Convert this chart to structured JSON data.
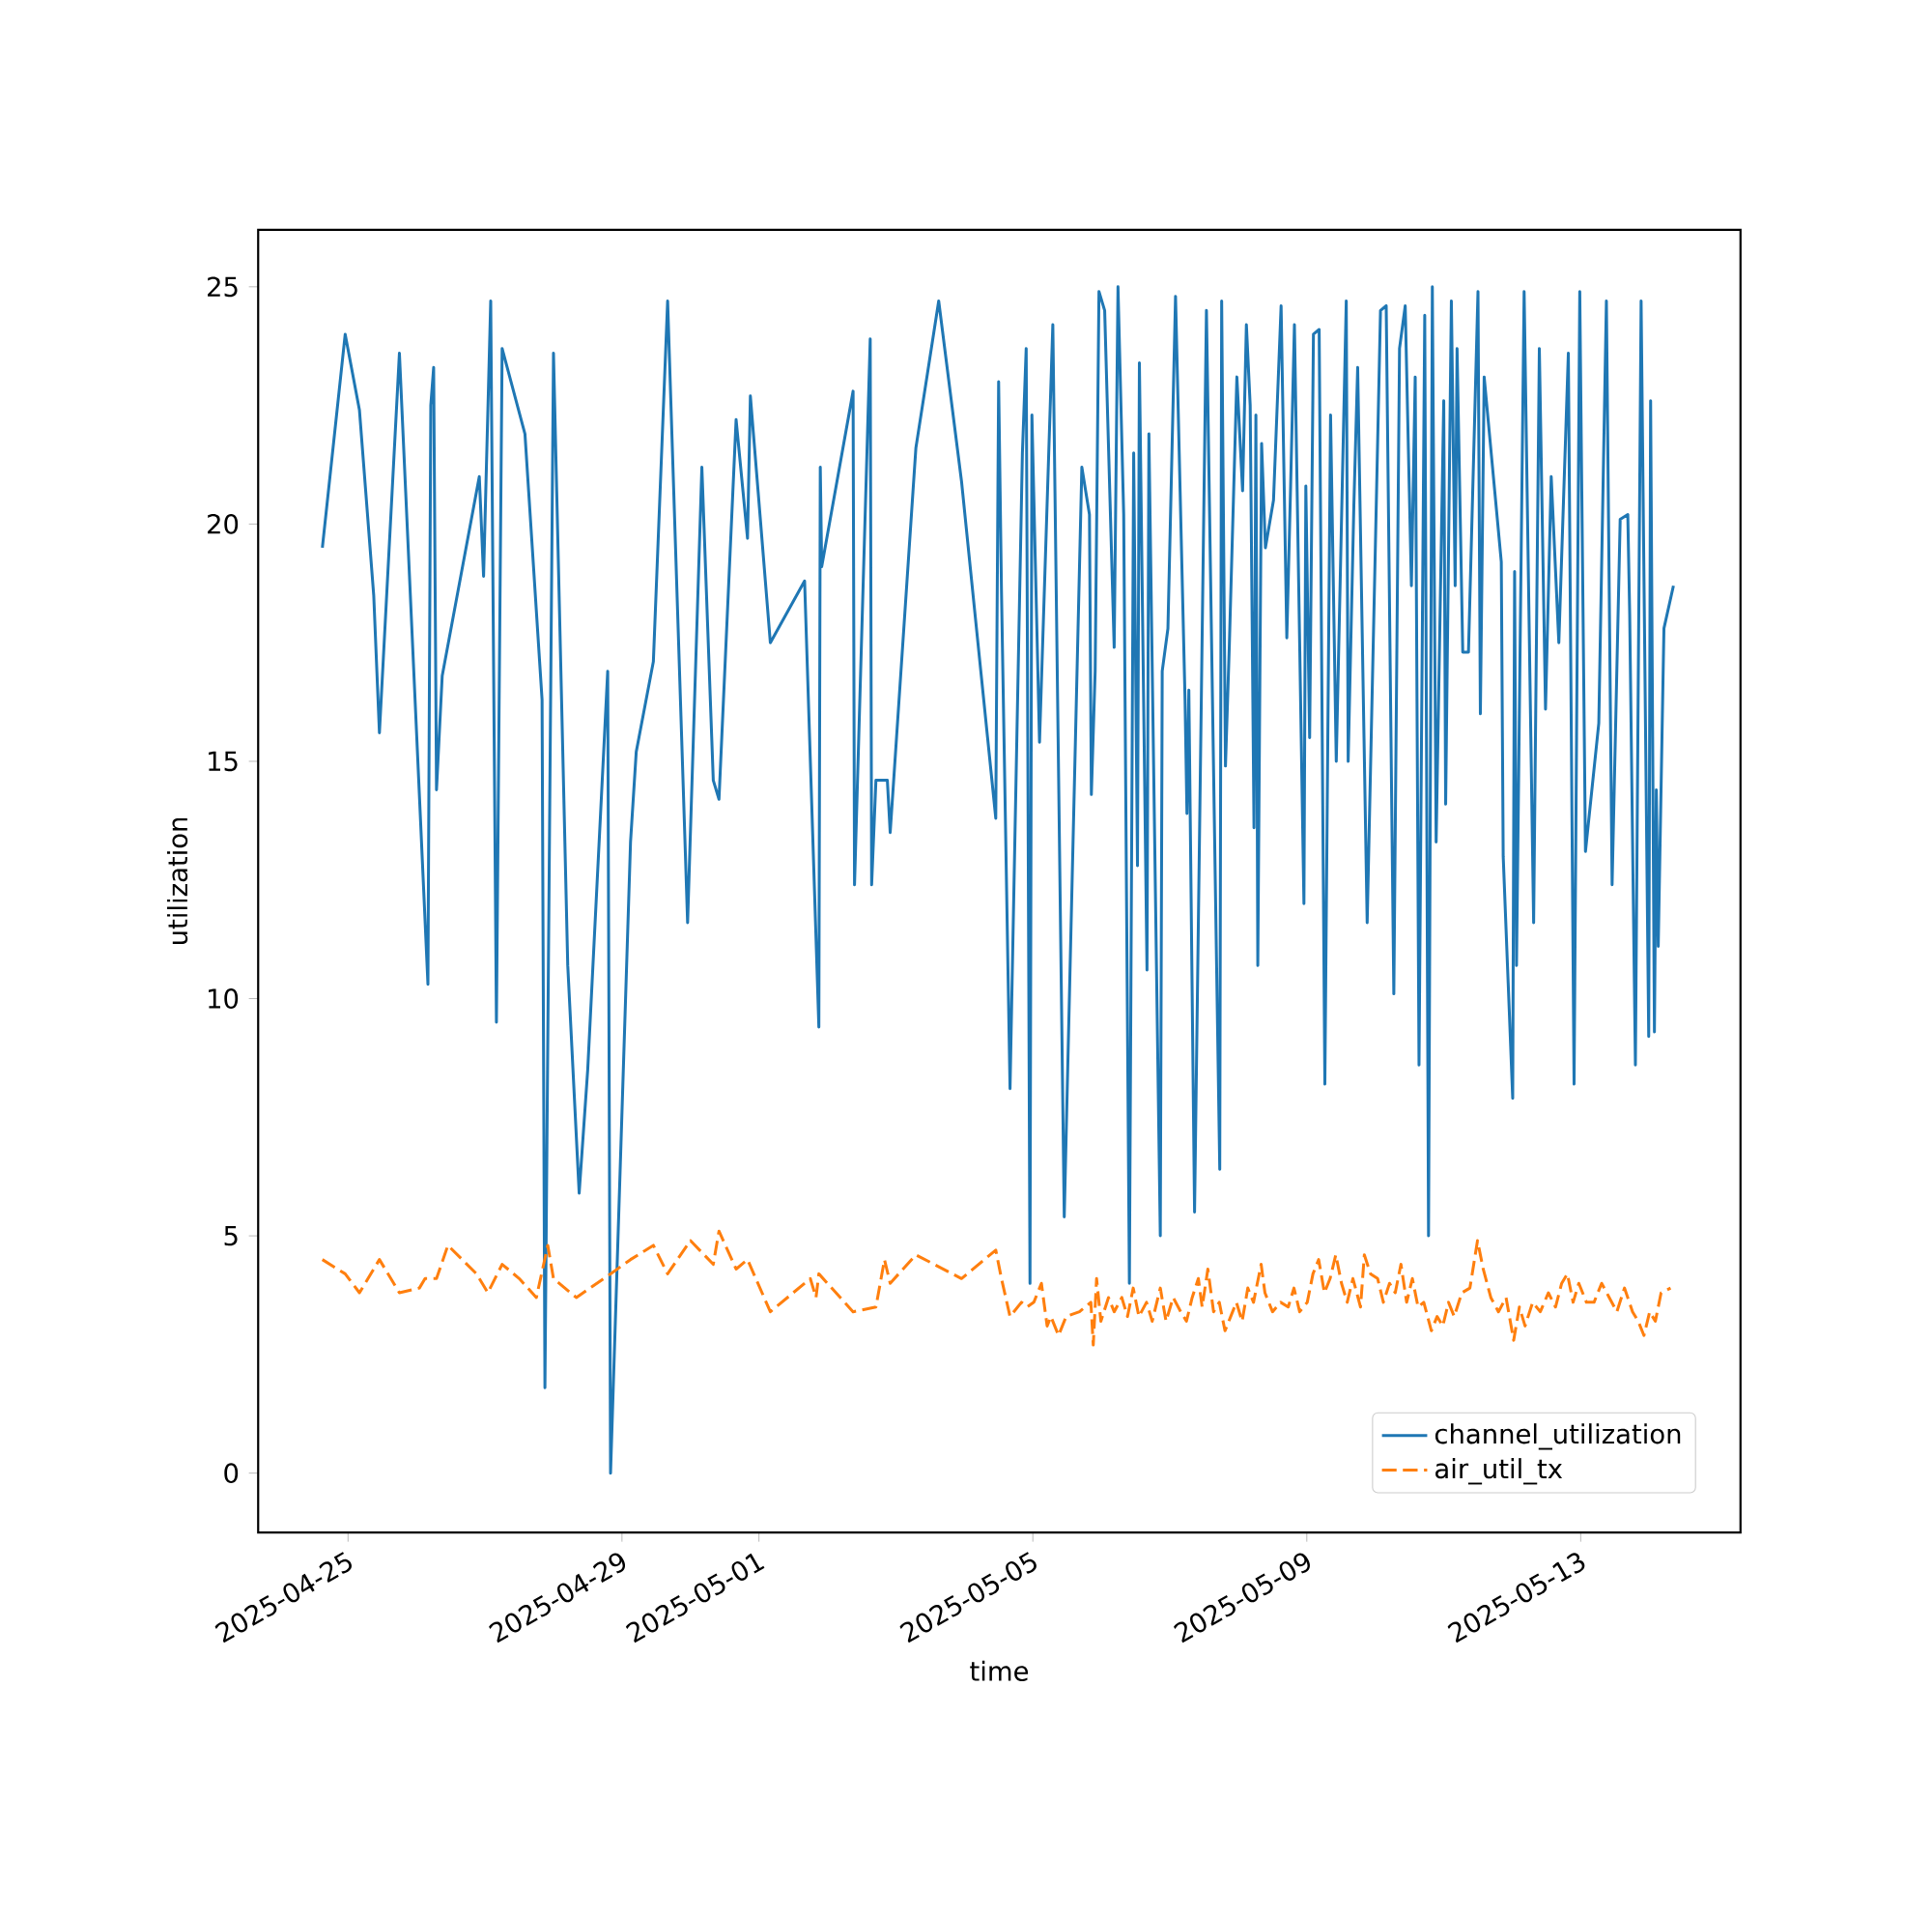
{
  "chart_data": {
    "type": "line",
    "xlabel": "time",
    "ylabel": "utilization",
    "legend": "bottom right",
    "xlim": [
      "2025-04-23T16:30",
      "2025-05-15T08:00"
    ],
    "xticks": [
      "2025-04-25",
      "2025-04-29",
      "2025-05-01",
      "2025-05-05",
      "2025-05-09",
      "2025-05-13"
    ],
    "ylim": [
      -1.25,
      26.2
    ],
    "yticks": [
      0,
      5,
      10,
      15,
      20,
      25
    ],
    "series": [
      {
        "name": "channel_utilization",
        "color": "#1f77b4",
        "line_style": "solid",
        "x": [
          "2025-04-24T15:00",
          "2025-04-24T23:00",
          "2025-04-25T04:00",
          "2025-04-25T09:00",
          "2025-04-25T11:00",
          "2025-04-25T18:00",
          "2025-04-26T04:00",
          "2025-04-26T05:00",
          "2025-04-26T06:00",
          "2025-04-26T07:00",
          "2025-04-26T09:00",
          "2025-04-26T22:00",
          "2025-04-26T23:30",
          "2025-04-27T02:00",
          "2025-04-27T04:00",
          "2025-04-27T06:00",
          "2025-04-27T14:00",
          "2025-04-27T20:00",
          "2025-04-27T21:00",
          "2025-04-28T00:00",
          "2025-04-28T05:00",
          "2025-04-28T09:00",
          "2025-04-28T12:00",
          "2025-04-28T19:00",
          "2025-04-28T20:00",
          "2025-04-29T03:00",
          "2025-04-29T05:00",
          "2025-04-29T11:00",
          "2025-04-29T16:00",
          "2025-04-29T23:00",
          "2025-04-30T04:00",
          "2025-04-30T08:00",
          "2025-04-30T10:00",
          "2025-04-30T16:00",
          "2025-04-30T20:00",
          "2025-04-30T21:00",
          "2025-05-01T04:00",
          "2025-05-01T16:00",
          "2025-05-01T21:00",
          "2025-05-01T21:30",
          "2025-05-01T22:00",
          "2025-05-02T09:00",
          "2025-05-02T09:30",
          "2025-05-02T15:00",
          "2025-05-02T15:30",
          "2025-05-02T17:00",
          "2025-05-02T21:00",
          "2025-05-02T22:00",
          "2025-05-03T07:00",
          "2025-05-03T15:00",
          "2025-05-03T23:00",
          "2025-05-04T11:00",
          "2025-05-04T12:00",
          "2025-05-04T13:00",
          "2025-05-04T16:00",
          "2025-05-04T20:20",
          "2025-05-04T21:40",
          "2025-05-04T23:00",
          "2025-05-04T23:40",
          "2025-05-05T02:20",
          "2025-05-05T07:00",
          "2025-05-05T11:00",
          "2025-05-05T17:10",
          "2025-05-05T19:50",
          "2025-05-05T20:30",
          "2025-05-05T21:50",
          "2025-05-05T23:10",
          "2025-05-06T01:10",
          "2025-05-06T04:30",
          "2025-05-06T05:50",
          "2025-05-06T07:50",
          "2025-05-06T09:50",
          "2025-05-06T11:20",
          "2025-05-06T12:40",
          "2025-05-06T13:20",
          "2025-05-06T16:00",
          "2025-05-06T16:40",
          "2025-05-06T20:40",
          "2025-05-06T21:20",
          "2025-05-06T23:20",
          "2025-05-07T02:00",
          "2025-05-07T04:00",
          "2025-05-07T05:20",
          "2025-05-07T06:00",
          "2025-05-07T06:40",
          "2025-05-07T08:40",
          "2025-05-07T12:50",
          "2025-05-07T17:30",
          "2025-05-07T18:10",
          "2025-05-07T19:30",
          "2025-05-07T20:50",
          "2025-05-07T23:30",
          "2025-05-08T01:30",
          "2025-05-08T02:50",
          "2025-05-08T04:10",
          "2025-05-08T05:30",
          "2025-05-08T06:10",
          "2025-05-08T06:50",
          "2025-05-08T08:10",
          "2025-05-08T09:30",
          "2025-05-08T12:20",
          "2025-05-08T15:00",
          "2025-05-08T17:00",
          "2025-05-08T18:20",
          "2025-05-08T19:40",
          "2025-05-08T23:00",
          "2025-05-08T23:40",
          "2025-05-09T01:00",
          "2025-05-09T02:20",
          "2025-05-09T04:20",
          "2025-05-09T06:20",
          "2025-05-09T08:20",
          "2025-05-09T10:20",
          "2025-05-09T13:50",
          "2025-05-09T14:30",
          "2025-05-09T16:30",
          "2025-05-09T17:50",
          "2025-05-09T21:10",
          "2025-05-10T01:50",
          "2025-05-10T03:50",
          "2025-05-10T06:30",
          "2025-05-10T08:30",
          "2025-05-10T10:30",
          "2025-05-10T12:40",
          "2025-05-10T14:00",
          "2025-05-10T15:20",
          "2025-05-10T17:20",
          "2025-05-10T18:40",
          "2025-05-10T20:00",
          "2025-05-10T21:20",
          "2025-05-11T00:00",
          "2025-05-11T00:40",
          "2025-05-11T02:40",
          "2025-05-11T04:00",
          "2025-05-11T04:40",
          "2025-05-11T06:40",
          "2025-05-11T08:40",
          "2025-05-11T12:00",
          "2025-05-11T12:50",
          "2025-05-11T14:10",
          "2025-05-11T20:10",
          "2025-05-11T20:50",
          "2025-05-12T00:10",
          "2025-05-12T00:50",
          "2025-05-12T01:30",
          "2025-05-12T04:10",
          "2025-05-12T07:30",
          "2025-05-12T09:30",
          "2025-05-12T11:40",
          "2025-05-12T13:40",
          "2025-05-12T16:20",
          "2025-05-12T19:40",
          "2025-05-12T21:40",
          "2025-05-12T23:40",
          "2025-05-13T01:40",
          "2025-05-13T06:20",
          "2025-05-13T09:00",
          "2025-05-13T11:00",
          "2025-05-13T13:50",
          "2025-05-13T16:30",
          "2025-05-13T17:10",
          "2025-05-13T19:10",
          "2025-05-13T21:10",
          "2025-05-13T23:50",
          "2025-05-14T00:30",
          "2025-05-14T01:50",
          "2025-05-14T02:30",
          "2025-05-14T03:10",
          "2025-05-14T05:10",
          "2025-05-14T08:30"
        ],
        "values": [
          19.5,
          24.0,
          22.4,
          18.5,
          15.6,
          23.6,
          10.3,
          22.5,
          23.3,
          14.4,
          16.8,
          21.0,
          18.9,
          24.7,
          9.5,
          23.7,
          21.9,
          16.3,
          1.8,
          23.6,
          10.7,
          5.9,
          8.5,
          16.9,
          0.0,
          13.3,
          15.2,
          17.1,
          24.7,
          11.6,
          21.2,
          14.6,
          14.2,
          22.2,
          19.7,
          22.7,
          17.5,
          18.8,
          9.4,
          21.2,
          19.1,
          22.8,
          12.4,
          23.9,
          12.4,
          14.6,
          14.6,
          13.5,
          21.6,
          24.7,
          20.9,
          13.8,
          23.0,
          18.6,
          8.1,
          21.5,
          23.7,
          4.0,
          22.3,
          15.4,
          24.2,
          5.4,
          21.2,
          20.2,
          14.3,
          16.9,
          24.9,
          24.5,
          17.4,
          25.0,
          20.2,
          4.0,
          21.5,
          12.8,
          23.4,
          10.6,
          21.9,
          5.0,
          16.9,
          17.8,
          24.8,
          19.7,
          16.3,
          13.9,
          16.5,
          5.5,
          24.5,
          6.4,
          24.7,
          14.9,
          17.4,
          23.1,
          20.7,
          24.2,
          22.5,
          13.6,
          22.3,
          10.7,
          21.7,
          19.5,
          20.5,
          24.6,
          17.6,
          20.8,
          24.2,
          12.0,
          20.8,
          15.5,
          24.0,
          24.1,
          8.2,
          22.3,
          15.0,
          24.7,
          15.0,
          20.4,
          23.3,
          11.6,
          24.5,
          24.6,
          10.1,
          23.7,
          24.6,
          18.7,
          23.1,
          8.6,
          24.4,
          5.0,
          25.0,
          13.3,
          22.6,
          14.1,
          24.7,
          18.7,
          23.7,
          17.3,
          17.3,
          24.9,
          16.0,
          23.1,
          19.2,
          13.0,
          7.9,
          19.0,
          10.7,
          24.9,
          11.6,
          23.7,
          16.1,
          21.0,
          17.5,
          23.6,
          8.2,
          24.9,
          13.1,
          15.8,
          24.7,
          12.4,
          20.1,
          20.2,
          18.1,
          8.6,
          24.7,
          9.2,
          22.6,
          9.3,
          14.4,
          11.1,
          17.8,
          18.7
        ]
      },
      {
        "name": "air_util_tx",
        "color": "#ff7f0e",
        "line_style": "dashed",
        "x": [
          "2025-04-24T15:00",
          "2025-04-24T23:00",
          "2025-04-25T04:00",
          "2025-04-25T11:00",
          "2025-04-25T18:00",
          "2025-04-26T01:00",
          "2025-04-26T03:00",
          "2025-04-26T07:00",
          "2025-04-26T11:00",
          "2025-04-26T21:00",
          "2025-04-27T01:00",
          "2025-04-27T06:00",
          "2025-04-27T12:00",
          "2025-04-27T18:00",
          "2025-04-27T22:00",
          "2025-04-28T00:00",
          "2025-04-28T08:00",
          "2025-04-28T20:00",
          "2025-04-29T03:00",
          "2025-04-29T11:00",
          "2025-04-29T16:00",
          "2025-04-30T00:00",
          "2025-04-30T08:00",
          "2025-04-30T10:00",
          "2025-04-30T16:00",
          "2025-04-30T20:00",
          "2025-05-01T04:00",
          "2025-05-01T18:00",
          "2025-05-01T20:00",
          "2025-05-01T21:00",
          "2025-05-02T09:00",
          "2025-05-02T17:00",
          "2025-05-02T20:00",
          "2025-05-02T22:00",
          "2025-05-03T07:00",
          "2025-05-03T23:00",
          "2025-05-04T11:00",
          "2025-05-04T13:00",
          "2025-05-04T16:00",
          "2025-05-04T20:00",
          "2025-05-04T22:00",
          "2025-05-05T00:20",
          "2025-05-05T03:00",
          "2025-05-05T05:00",
          "2025-05-05T06:20",
          "2025-05-05T09:00",
          "2025-05-05T11:40",
          "2025-05-05T16:20",
          "2025-05-05T20:20",
          "2025-05-05T21:10",
          "2025-05-05T22:20",
          "2025-05-05T23:50",
          "2025-05-06T02:30",
          "2025-05-06T04:30",
          "2025-05-06T07:10",
          "2025-05-06T09:10",
          "2025-05-06T11:10",
          "2025-05-06T13:10",
          "2025-05-06T15:50",
          "2025-05-06T17:50",
          "2025-05-06T20:40",
          "2025-05-06T22:40",
          "2025-05-07T01:10",
          "2025-05-07T03:50",
          "2025-05-07T05:50",
          "2025-05-07T07:50",
          "2025-05-07T10:00",
          "2025-05-07T11:20",
          "2025-05-07T13:20",
          "2025-05-07T15:20",
          "2025-05-07T17:20",
          "2025-05-07T19:20",
          "2025-05-07T21:20",
          "2025-05-07T23:20",
          "2025-05-08T01:20",
          "2025-05-08T03:20",
          "2025-05-08T05:20",
          "2025-05-08T08:00",
          "2025-05-08T09:20",
          "2025-05-08T12:00",
          "2025-05-08T14:50",
          "2025-05-08T17:30",
          "2025-05-08T19:30",
          "2025-05-08T21:30",
          "2025-05-09T00:10",
          "2025-05-09T02:10",
          "2025-05-09T04:10",
          "2025-05-09T06:10",
          "2025-05-09T08:10",
          "2025-05-09T10:10",
          "2025-05-09T12:10",
          "2025-05-09T14:10",
          "2025-05-09T16:10",
          "2025-05-09T18:50",
          "2025-05-09T20:10",
          "2025-05-09T22:20",
          "2025-05-10T00:50",
          "2025-05-10T02:50",
          "2025-05-10T05:00",
          "2025-05-10T07:00",
          "2025-05-10T09:00",
          "2025-05-10T11:00",
          "2025-05-10T13:00",
          "2025-05-10T15:00",
          "2025-05-10T17:00",
          "2025-05-10T19:40",
          "2025-05-10T21:40",
          "2025-05-10T23:40",
          "2025-05-11T01:40",
          "2025-05-11T03:40",
          "2025-05-11T06:20",
          "2025-05-11T09:10",
          "2025-05-11T11:50",
          "2025-05-11T13:50",
          "2025-05-11T16:30",
          "2025-05-11T19:10",
          "2025-05-11T21:50",
          "2025-05-12T00:30",
          "2025-05-12T02:30",
          "2025-05-12T04:30",
          "2025-05-12T07:10",
          "2025-05-12T09:50",
          "2025-05-12T12:40",
          "2025-05-12T15:10",
          "2025-05-12T17:20",
          "2025-05-12T19:20",
          "2025-05-12T21:20",
          "2025-05-12T23:20",
          "2025-05-13T02:00",
          "2025-05-13T04:40",
          "2025-05-13T07:20",
          "2025-05-13T10:00",
          "2025-05-13T12:40",
          "2025-05-13T15:20",
          "2025-05-13T18:10",
          "2025-05-13T20:10",
          "2025-05-13T22:10",
          "2025-05-14T00:10",
          "2025-05-14T02:10",
          "2025-05-14T04:10",
          "2025-05-14T07:30"
        ],
        "values": [
          4.5,
          4.2,
          3.8,
          4.5,
          3.8,
          3.9,
          4.1,
          4.1,
          4.8,
          4.2,
          3.8,
          4.4,
          4.1,
          3.7,
          4.8,
          4.1,
          3.7,
          4.2,
          4.5,
          4.8,
          4.2,
          4.9,
          4.4,
          5.1,
          4.3,
          4.5,
          3.4,
          4.1,
          3.7,
          4.2,
          3.4,
          3.5,
          4.5,
          4.0,
          4.6,
          4.1,
          4.7,
          4.1,
          3.3,
          3.6,
          3.5,
          3.6,
          4.0,
          3.1,
          3.3,
          2.9,
          3.3,
          3.4,
          3.6,
          2.7,
          4.1,
          3.2,
          3.7,
          3.4,
          3.7,
          3.3,
          3.9,
          3.3,
          3.6,
          3.2,
          3.9,
          3.2,
          3.7,
          3.4,
          3.2,
          3.7,
          4.1,
          3.5,
          4.3,
          3.4,
          3.6,
          3.0,
          3.3,
          3.6,
          3.2,
          3.9,
          3.6,
          4.4,
          3.8,
          3.4,
          3.6,
          3.5,
          3.9,
          3.4,
          3.6,
          4.2,
          4.5,
          3.8,
          4.1,
          4.6,
          4.0,
          3.6,
          4.1,
          3.5,
          4.6,
          4.2,
          4.1,
          3.6,
          4.0,
          3.8,
          4.4,
          3.6,
          4.1,
          3.5,
          3.6,
          3.0,
          3.3,
          3.1,
          3.6,
          3.3,
          3.8,
          3.9,
          4.9,
          4.3,
          3.7,
          3.4,
          3.7,
          2.8,
          3.5,
          3.1,
          3.6,
          3.4,
          3.8,
          3.5,
          4.0,
          4.2,
          3.6,
          4.0,
          3.6,
          3.6,
          4.0,
          3.7,
          3.4,
          3.9,
          3.4,
          3.2,
          2.9,
          3.4,
          3.2,
          3.8,
          3.9
        ]
      }
    ]
  }
}
